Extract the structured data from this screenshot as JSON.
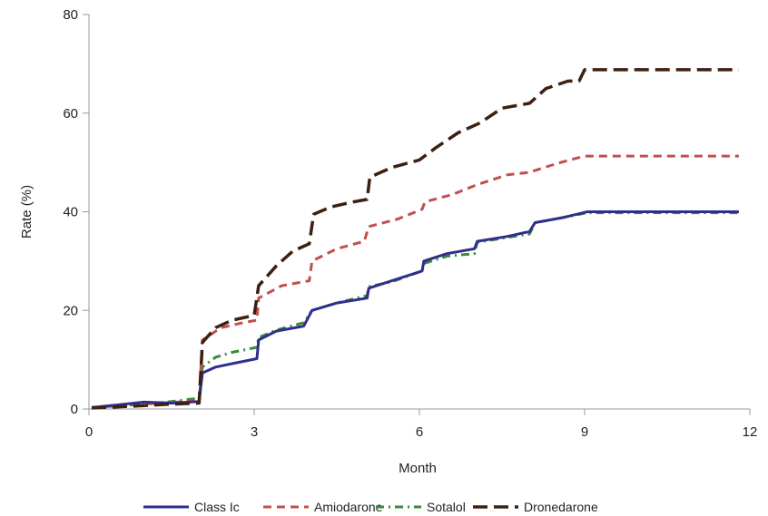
{
  "chart_data": {
    "type": "line",
    "xlabel": "Month",
    "ylabel": "Rate (%)",
    "xlim": [
      0,
      12
    ],
    "ylim": [
      0,
      80
    ],
    "xticks": [
      "0",
      "3",
      "6",
      "9",
      "12"
    ],
    "yticks": [
      "0",
      "20",
      "40",
      "60",
      "80"
    ],
    "grid": false,
    "legend_position": "bottom",
    "series": [
      {
        "name": "Class Ic",
        "color": "#2e2e8c",
        "style": "solid",
        "points": [
          [
            0.05,
            0.3
          ],
          [
            0.5,
            0.8
          ],
          [
            1.0,
            1.4
          ],
          [
            1.5,
            1.2
          ],
          [
            2.0,
            1.5
          ],
          [
            2.06,
            7.3
          ],
          [
            2.3,
            8.5
          ],
          [
            2.6,
            9.2
          ],
          [
            3.05,
            10.2
          ],
          [
            3.08,
            14.0
          ],
          [
            3.4,
            15.8
          ],
          [
            3.9,
            16.8
          ],
          [
            4.05,
            20.0
          ],
          [
            4.5,
            21.5
          ],
          [
            5.05,
            22.5
          ],
          [
            5.08,
            24.5
          ],
          [
            5.5,
            26.0
          ],
          [
            6.05,
            28.0
          ],
          [
            6.08,
            30.0
          ],
          [
            6.5,
            31.5
          ],
          [
            7.0,
            32.5
          ],
          [
            7.05,
            34.0
          ],
          [
            7.6,
            35.0
          ],
          [
            8.0,
            36.0
          ],
          [
            8.1,
            37.8
          ],
          [
            8.6,
            38.8
          ],
          [
            9.05,
            40.0
          ],
          [
            10.0,
            40.0
          ],
          [
            11.8,
            40.0
          ]
        ]
      },
      {
        "name": "Amiodarone",
        "color": "#c0504d",
        "style": "dashed",
        "points": [
          [
            0.05,
            0.3
          ],
          [
            0.5,
            0.6
          ],
          [
            1.0,
            1.0
          ],
          [
            1.5,
            1.3
          ],
          [
            2.0,
            1.8
          ],
          [
            2.06,
            14.0
          ],
          [
            2.4,
            16.5
          ],
          [
            2.8,
            17.5
          ],
          [
            3.05,
            18.0
          ],
          [
            3.08,
            22.5
          ],
          [
            3.5,
            25.0
          ],
          [
            4.0,
            26.0
          ],
          [
            4.05,
            30.0
          ],
          [
            4.5,
            32.5
          ],
          [
            5.0,
            34.0
          ],
          [
            5.08,
            37.0
          ],
          [
            5.6,
            38.5
          ],
          [
            6.05,
            40.5
          ],
          [
            6.1,
            42.0
          ],
          [
            6.6,
            43.5
          ],
          [
            7.05,
            45.5
          ],
          [
            7.6,
            47.5
          ],
          [
            8.0,
            48.0
          ],
          [
            8.5,
            49.8
          ],
          [
            9.0,
            51.3
          ],
          [
            10.0,
            51.3
          ],
          [
            11.8,
            51.3
          ]
        ]
      },
      {
        "name": "Sotalol",
        "color": "#3a8a3a",
        "style": "dashdot",
        "points": [
          [
            0.05,
            0.3
          ],
          [
            0.5,
            0.6
          ],
          [
            1.0,
            1.0
          ],
          [
            1.5,
            1.5
          ],
          [
            2.0,
            2.2
          ],
          [
            2.06,
            8.5
          ],
          [
            2.3,
            10.5
          ],
          [
            2.6,
            11.5
          ],
          [
            3.05,
            12.5
          ],
          [
            3.08,
            14.5
          ],
          [
            3.4,
            16.0
          ],
          [
            3.9,
            17.5
          ],
          [
            4.05,
            20.0
          ],
          [
            4.5,
            21.5
          ],
          [
            5.05,
            23.0
          ],
          [
            5.08,
            24.8
          ],
          [
            5.5,
            25.8
          ],
          [
            6.05,
            28.0
          ],
          [
            6.08,
            29.5
          ],
          [
            6.5,
            31.0
          ],
          [
            7.0,
            31.5
          ],
          [
            7.05,
            33.8
          ],
          [
            7.6,
            34.8
          ],
          [
            8.0,
            35.5
          ],
          [
            8.1,
            37.8
          ],
          [
            8.6,
            38.8
          ],
          [
            9.05,
            39.8
          ],
          [
            10.0,
            39.8
          ],
          [
            11.8,
            39.8
          ]
        ]
      },
      {
        "name": "Dronedarone",
        "color": "#3d2010",
        "style": "longdash",
        "points": [
          [
            0.05,
            0.2
          ],
          [
            0.5,
            0.4
          ],
          [
            1.0,
            0.7
          ],
          [
            1.5,
            1.0
          ],
          [
            2.0,
            1.2
          ],
          [
            2.06,
            13.5
          ],
          [
            2.3,
            16.5
          ],
          [
            2.6,
            18.0
          ],
          [
            3.0,
            19.0
          ],
          [
            3.08,
            25.0
          ],
          [
            3.4,
            29.0
          ],
          [
            3.7,
            32.0
          ],
          [
            4.0,
            33.5
          ],
          [
            4.08,
            39.5
          ],
          [
            4.4,
            41.0
          ],
          [
            4.8,
            42.0
          ],
          [
            5.05,
            42.5
          ],
          [
            5.1,
            47.0
          ],
          [
            5.5,
            49.0
          ],
          [
            6.0,
            50.5
          ],
          [
            6.3,
            53.0
          ],
          [
            6.7,
            56.0
          ],
          [
            7.1,
            58.0
          ],
          [
            7.5,
            61.0
          ],
          [
            8.0,
            62.0
          ],
          [
            8.3,
            65.0
          ],
          [
            8.7,
            66.5
          ],
          [
            8.9,
            66.5
          ],
          [
            9.0,
            68.8
          ],
          [
            10.0,
            68.8
          ],
          [
            11.8,
            68.8
          ]
        ]
      }
    ]
  }
}
